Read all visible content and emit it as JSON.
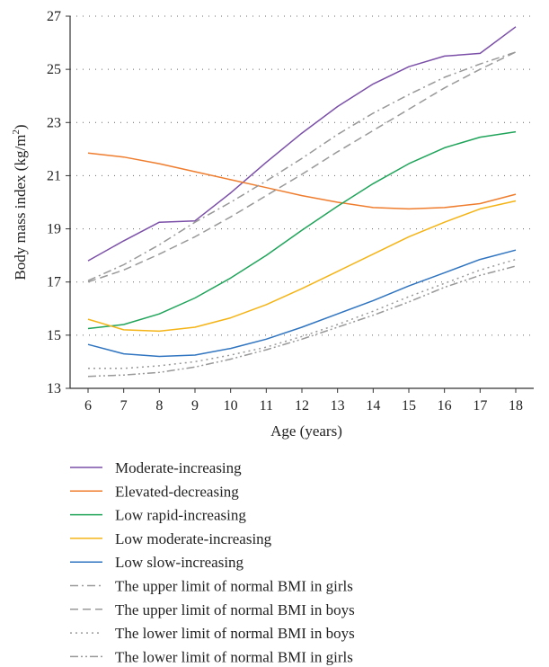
{
  "chart_data": {
    "type": "line",
    "xlabel": "Age (years)",
    "ylabel": "Body mass index (kg/m²)",
    "ylabel_main": "Body mass index (kg/m",
    "ylabel_sup": "2",
    "ylabel_close": ")",
    "x": [
      6,
      7,
      8,
      9,
      10,
      11,
      12,
      13,
      14,
      15,
      16,
      17,
      18
    ],
    "xlim": [
      6,
      18
    ],
    "ylim": [
      13,
      27
    ],
    "yticks": [
      13,
      15,
      17,
      19,
      21,
      23,
      25,
      27
    ],
    "grid": "horizontal-dotted",
    "legend_position": "bottom",
    "series": [
      {
        "name": "Moderate-increasing",
        "color": "#7b4fa8",
        "dash": "solid",
        "values": [
          17.8,
          18.55,
          19.25,
          19.3,
          20.35,
          21.5,
          22.6,
          23.6,
          24.45,
          25.1,
          25.5,
          25.6,
          26.6
        ]
      },
      {
        "name": "Elevated-decreasing",
        "color": "#ef7d2d",
        "dash": "solid",
        "values": [
          21.85,
          21.7,
          21.45,
          21.15,
          20.85,
          20.55,
          20.25,
          20.0,
          19.8,
          19.75,
          19.8,
          19.95,
          20.3
        ]
      },
      {
        "name": "Low rapid-increasing",
        "color": "#1fa45a",
        "dash": "solid",
        "values": [
          15.25,
          15.4,
          15.8,
          16.4,
          17.15,
          18.0,
          18.95,
          19.85,
          20.7,
          21.45,
          22.05,
          22.45,
          22.65
        ]
      },
      {
        "name": "Low moderate-increasing",
        "color": "#f4b416",
        "dash": "solid",
        "values": [
          15.6,
          15.2,
          15.15,
          15.3,
          15.65,
          16.15,
          16.75,
          17.4,
          18.05,
          18.7,
          19.25,
          19.75,
          20.05
        ]
      },
      {
        "name": "Low slow-increasing",
        "color": "#2f74c0",
        "dash": "solid",
        "values": [
          14.65,
          14.3,
          14.2,
          14.25,
          14.5,
          14.85,
          15.3,
          15.8,
          16.3,
          16.85,
          17.35,
          17.85,
          18.2
        ]
      },
      {
        "name": "The upper limit of normal BMI in girls",
        "color": "#999999",
        "dash": "dashdot",
        "values": [
          17.05,
          17.65,
          18.4,
          19.25,
          20.0,
          20.8,
          21.65,
          22.55,
          23.35,
          24.05,
          24.7,
          25.2,
          25.65
        ]
      },
      {
        "name": "The upper limit of normal BMI in boys",
        "color": "#999999",
        "dash": "dashed",
        "values": [
          17.0,
          17.45,
          18.05,
          18.7,
          19.45,
          20.25,
          21.05,
          21.9,
          22.7,
          23.5,
          24.3,
          25.0,
          25.65
        ]
      },
      {
        "name": "The lower limit of normal BMI in boys",
        "color": "#999999",
        "dash": "dotted",
        "values": [
          13.75,
          13.75,
          13.85,
          14.0,
          14.25,
          14.55,
          14.95,
          15.4,
          15.9,
          16.45,
          16.95,
          17.45,
          17.85
        ]
      },
      {
        "name": "The lower limit of normal BMI in girls",
        "color": "#999999",
        "dash": "dashdotdot",
        "values": [
          13.45,
          13.5,
          13.6,
          13.8,
          14.1,
          14.45,
          14.85,
          15.3,
          15.75,
          16.25,
          16.8,
          17.25,
          17.6
        ]
      }
    ]
  }
}
